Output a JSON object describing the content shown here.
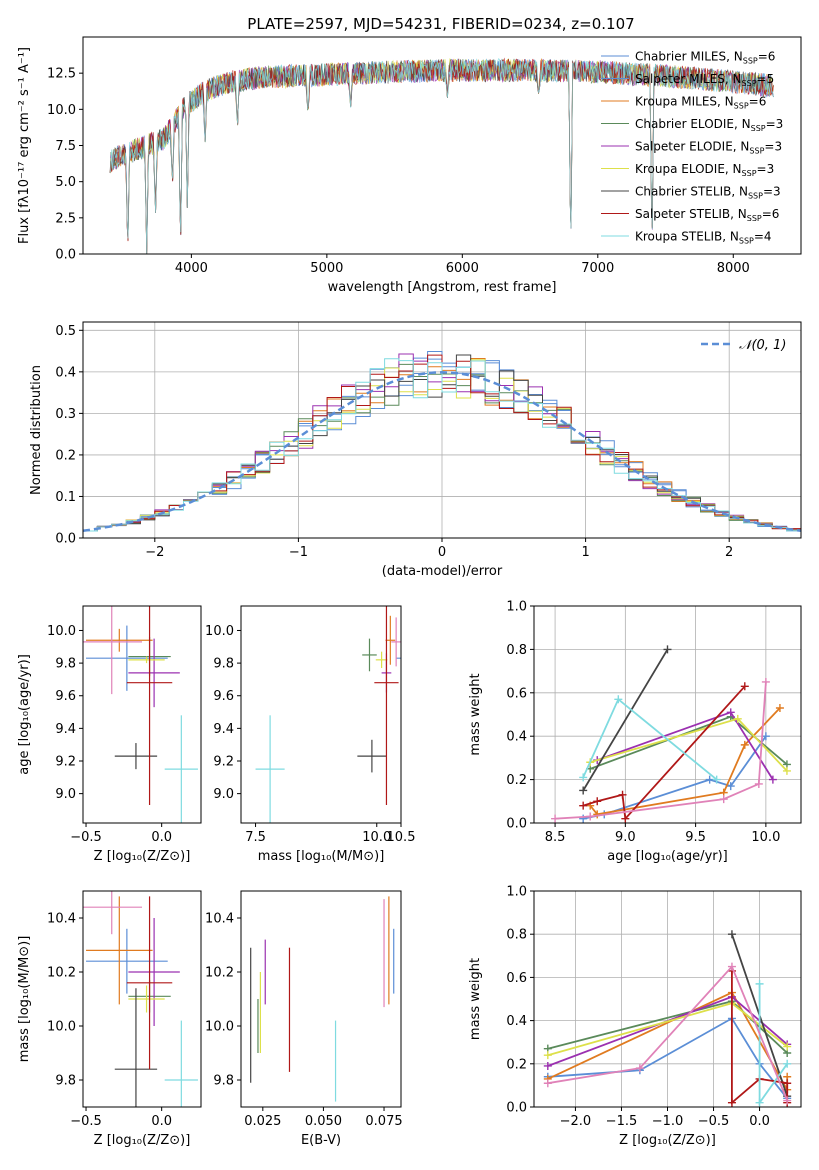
{
  "figure_title": "PLATE=2597, MJD=54231, FIBERID=0234, z=0.107",
  "series_styles": [
    {
      "name": "Chabrier MILES",
      "n": "6",
      "color": "#5b8ed6"
    },
    {
      "name": "Salpeter MILES",
      "n": "5",
      "color": "#5b8ed6"
    },
    {
      "name": "Kroupa MILES",
      "n": "6",
      "color": "#e07b20"
    },
    {
      "name": "Chabrier ELODIE",
      "n": "3",
      "color": "#5a8a5a"
    },
    {
      "name": "Salpeter ELODIE",
      "n": "3",
      "color": "#9b30b0"
    },
    {
      "name": "Kroupa ELODIE",
      "n": "3",
      "color": "#dde04a"
    },
    {
      "name": "Chabrier STELIB",
      "n": "3",
      "color": "#444444"
    },
    {
      "name": "Salpeter STELIB",
      "n": "6",
      "color": "#b01818"
    },
    {
      "name": "Kroupa STELIB",
      "n": "4",
      "color": "#7fdbe0"
    }
  ],
  "chart_data": [
    {
      "id": "spectrum",
      "type": "line",
      "xlabel": "wavelength [Angstrom, rest frame]",
      "ylabel": "Flux [fλ10⁻¹⁷ erg cm⁻² s⁻¹ A⁻¹]",
      "xlim": [
        3200,
        8500
      ],
      "ylim": [
        0,
        15
      ],
      "xticks": [
        4000,
        5000,
        6000,
        7000,
        8000
      ],
      "yticks": [
        0.0,
        2.5,
        5.0,
        7.5,
        10.0,
        12.5
      ],
      "continuum": [
        [
          3400,
          6.4
        ],
        [
          3500,
          6.9
        ],
        [
          3650,
          7.4
        ],
        [
          3800,
          8.0
        ],
        [
          3950,
          10.2
        ],
        [
          4100,
          11.3
        ],
        [
          4300,
          11.9
        ],
        [
          4500,
          12.2
        ],
        [
          5000,
          12.4
        ],
        [
          5500,
          12.6
        ],
        [
          6000,
          12.7
        ],
        [
          6500,
          12.7
        ],
        [
          7000,
          12.6
        ],
        [
          7500,
          12.3
        ],
        [
          8000,
          11.9
        ],
        [
          8300,
          11.6
        ]
      ],
      "absorption_lines": [
        [
          3530,
          0.0
        ],
        [
          3670,
          0.0
        ],
        [
          3735,
          2.5
        ],
        [
          3860,
          4.5
        ],
        [
          3920,
          0.0
        ],
        [
          3970,
          3.2
        ],
        [
          4101,
          7.5
        ],
        [
          4340,
          8.5
        ],
        [
          4861,
          9.5
        ],
        [
          5175,
          10.0
        ],
        [
          5890,
          10.8
        ],
        [
          6563,
          11.0
        ],
        [
          6800,
          0.0
        ],
        [
          7400,
          0.0
        ]
      ],
      "legend": "upper right"
    },
    {
      "id": "residuals",
      "type": "histogram",
      "xlabel": "(data-model)/error",
      "ylabel": "Normed distribution",
      "xlim": [
        -2.5,
        2.5
      ],
      "ylim": [
        0,
        0.52
      ],
      "xticks": [
        -2,
        -1,
        0,
        1,
        2
      ],
      "yticks": [
        0.0,
        0.1,
        0.2,
        0.3,
        0.4,
        0.5
      ],
      "bin_width": 0.1,
      "grid": true,
      "legend_label": "𝒩(0, 1)",
      "legend": "upper right"
    },
    {
      "id": "z-age",
      "type": "errorbar",
      "xlabel": "Z [log₁₀(Z/Z⊙)]",
      "ylabel": "age  [log₁₀(age/yr)]",
      "xlim": [
        -0.52,
        0.26
      ],
      "ylim": [
        8.82,
        10.15
      ],
      "xticks": [
        -0.5,
        0.0
      ],
      "yticks": [
        9.0,
        9.2,
        9.4,
        9.6,
        9.8,
        10.0
      ],
      "points": [
        {
          "x": -0.23,
          "y": 9.83,
          "xerr": 0.27,
          "yerr": 0.2,
          "color": "#5b8ed6"
        },
        {
          "x": -0.28,
          "y": 9.94,
          "xerr": 0.22,
          "yerr": 0.07,
          "color": "#e07b20"
        },
        {
          "x": -0.08,
          "y": 9.84,
          "xerr": 0.14,
          "yerr": 0.12,
          "color": "#5a8a5a"
        },
        {
          "x": -0.05,
          "y": 9.74,
          "xerr": 0.17,
          "yerr": 0.21,
          "color": "#9b30b0"
        },
        {
          "x": -0.1,
          "y": 9.82,
          "xerr": 0.12,
          "yerr": 0.02,
          "color": "#dde04a"
        },
        {
          "x": -0.17,
          "y": 9.23,
          "xerr": 0.14,
          "yerr": 0.08,
          "color": "#444444"
        },
        {
          "x": -0.08,
          "y": 9.68,
          "xerr": 0.15,
          "yerr": 0.75,
          "color": "#b01818"
        },
        {
          "x": 0.13,
          "y": 9.15,
          "xerr": 0.11,
          "yerr": 0.33,
          "color": "#7fdbe0"
        },
        {
          "x": -0.33,
          "y": 9.93,
          "xerr": 0.2,
          "yerr": 0.32,
          "color": "#e082b8"
        }
      ]
    },
    {
      "id": "mass-age",
      "type": "errorbar",
      "xlabel": "mass [log₁₀(M/M⊙)]",
      "ylabel": "",
      "xlim": [
        7.2,
        10.5
      ],
      "ylim": [
        8.82,
        10.15
      ],
      "xticks": [
        7.5,
        10.0,
        10.5
      ],
      "yticks": [
        9.0,
        9.2,
        9.4,
        9.6,
        9.8,
        10.0
      ],
      "points": [
        {
          "x": 10.6,
          "y": 9.83,
          "xerr": 0.2,
          "yerr": 0.1,
          "color": "#5b8ed6"
        },
        {
          "x": 10.28,
          "y": 9.94,
          "xerr": 0.1,
          "yerr": 0.15,
          "color": "#e07b20"
        },
        {
          "x": 9.85,
          "y": 9.85,
          "xerr": 0.15,
          "yerr": 0.1,
          "color": "#5a8a5a"
        },
        {
          "x": 10.2,
          "y": 9.74,
          "xerr": 0.1,
          "yerr": 0.12,
          "color": "#9b30b0"
        },
        {
          "x": 10.1,
          "y": 9.82,
          "xerr": 0.12,
          "yerr": 0.05,
          "color": "#dde04a"
        },
        {
          "x": 9.9,
          "y": 9.23,
          "xerr": 0.3,
          "yerr": 0.1,
          "color": "#444444"
        },
        {
          "x": 10.2,
          "y": 9.68,
          "xerr": 0.25,
          "yerr": 0.75,
          "color": "#b01818"
        },
        {
          "x": 7.8,
          "y": 9.15,
          "xerr": 0.3,
          "yerr": 0.33,
          "color": "#7fdbe0"
        },
        {
          "x": 10.4,
          "y": 9.93,
          "xerr": 0.1,
          "yerr": 0.15,
          "color": "#e082b8"
        }
      ]
    },
    {
      "id": "age-weight",
      "type": "line",
      "xlabel": "age  [log₁₀(age/yr)]",
      "ylabel": "mass weight",
      "xlim": [
        8.35,
        10.25
      ],
      "ylim": [
        0,
        1
      ],
      "xticks": [
        8.5,
        9.0,
        9.5,
        10.0
      ],
      "yticks": [
        0.0,
        0.2,
        0.4,
        0.6,
        0.8,
        1.0
      ],
      "grid": true,
      "series": [
        {
          "color": "#5b8ed6",
          "x": [
            8.7,
            8.85,
            9.6,
            9.75,
            10.0
          ],
          "y": [
            0.02,
            0.04,
            0.2,
            0.17,
            0.4
          ]
        },
        {
          "color": "#e07b20",
          "x": [
            8.75,
            8.8,
            9.7,
            9.85,
            10.1
          ],
          "y": [
            0.08,
            0.04,
            0.14,
            0.36,
            0.53
          ]
        },
        {
          "color": "#5a8a5a",
          "x": [
            8.75,
            9.75,
            10.15
          ],
          "y": [
            0.25,
            0.49,
            0.27
          ]
        },
        {
          "color": "#9b30b0",
          "x": [
            8.8,
            9.75,
            10.05
          ],
          "y": [
            0.29,
            0.51,
            0.2
          ]
        },
        {
          "color": "#dde04a",
          "x": [
            8.75,
            9.8,
            10.15
          ],
          "y": [
            0.28,
            0.48,
            0.24
          ]
        },
        {
          "color": "#444444",
          "x": [
            8.7,
            9.3
          ],
          "y": [
            0.15,
            0.8
          ]
        },
        {
          "color": "#b01818",
          "x": [
            8.7,
            8.8,
            8.98,
            9.0,
            9.85
          ],
          "y": [
            0.08,
            0.1,
            0.13,
            0.02,
            0.63
          ]
        },
        {
          "color": "#7fdbe0",
          "x": [
            8.7,
            8.95,
            9.65
          ],
          "y": [
            0.21,
            0.57,
            0.2
          ]
        },
        {
          "color": "#e082b8",
          "x": [
            8.5,
            8.75,
            9.7,
            9.95,
            10.0
          ],
          "y": [
            0.02,
            0.03,
            0.11,
            0.18,
            0.65
          ]
        }
      ]
    },
    {
      "id": "z-mass",
      "type": "errorbar",
      "xlabel": "Z [log₁₀(Z/Z⊙)]",
      "ylabel": "mass [log₁₀(M/M⊙)]",
      "xlim": [
        -0.52,
        0.26
      ],
      "ylim": [
        9.7,
        10.5
      ],
      "xticks": [
        -0.5,
        0.0
      ],
      "yticks": [
        9.8,
        10.0,
        10.2,
        10.4
      ],
      "points": [
        {
          "x": -0.23,
          "y": 10.24,
          "xerr": 0.27,
          "yerr": 0.12,
          "color": "#5b8ed6"
        },
        {
          "x": -0.28,
          "y": 10.28,
          "xerr": 0.22,
          "yerr": 0.2,
          "color": "#e07b20"
        },
        {
          "x": -0.08,
          "y": 10.11,
          "xerr": 0.14,
          "yerr": 0.06,
          "color": "#5a8a5a"
        },
        {
          "x": -0.05,
          "y": 10.2,
          "xerr": 0.17,
          "yerr": 0.2,
          "color": "#9b30b0"
        },
        {
          "x": -0.1,
          "y": 10.1,
          "xerr": 0.12,
          "yerr": 0.05,
          "color": "#dde04a"
        },
        {
          "x": -0.17,
          "y": 9.84,
          "xerr": 0.14,
          "yerr": 0.3,
          "color": "#444444"
        },
        {
          "x": -0.08,
          "y": 10.16,
          "xerr": 0.15,
          "yerr": 0.32,
          "color": "#b01818"
        },
        {
          "x": 0.13,
          "y": 9.8,
          "xerr": 0.11,
          "yerr": 0.22,
          "color": "#7fdbe0"
        },
        {
          "x": -0.33,
          "y": 10.44,
          "xerr": 0.2,
          "yerr": 0.1,
          "color": "#e082b8"
        }
      ]
    },
    {
      "id": "ebv-mass",
      "type": "errorbar",
      "xlabel": "E(B-V)",
      "ylabel": "",
      "xlim": [
        0.016,
        0.082
      ],
      "ylim": [
        9.7,
        10.5
      ],
      "xticks": [
        0.025,
        0.05,
        0.075
      ],
      "yticks": [
        9.8,
        10.0,
        10.2,
        10.4
      ],
      "points": [
        {
          "x": 0.079,
          "y": 10.24,
          "xerr": 0.0,
          "yerr": 0.12,
          "color": "#5b8ed6"
        },
        {
          "x": 0.077,
          "y": 10.28,
          "xerr": 0.0,
          "yerr": 0.2,
          "color": "#e07b20"
        },
        {
          "x": 0.023,
          "y": 10.0,
          "xerr": 0.0,
          "yerr": 0.1,
          "color": "#5a8a5a"
        },
        {
          "x": 0.026,
          "y": 10.2,
          "xerr": 0.0,
          "yerr": 0.12,
          "color": "#9b30b0"
        },
        {
          "x": 0.024,
          "y": 10.05,
          "xerr": 0.0,
          "yerr": 0.15,
          "color": "#dde04a"
        },
        {
          "x": 0.02,
          "y": 10.04,
          "xerr": 0.0,
          "yerr": 0.25,
          "color": "#444444"
        },
        {
          "x": 0.036,
          "y": 10.06,
          "xerr": 0.0,
          "yerr": 0.23,
          "color": "#b01818"
        },
        {
          "x": 0.055,
          "y": 9.87,
          "xerr": 0.0,
          "yerr": 0.15,
          "color": "#7fdbe0"
        },
        {
          "x": 0.075,
          "y": 10.27,
          "xerr": 0.0,
          "yerr": 0.2,
          "color": "#e082b8"
        }
      ]
    },
    {
      "id": "z-weight",
      "type": "line",
      "xlabel": "Z [log₁₀(Z/Z⊙)]",
      "ylabel": "mass weight",
      "xlim": [
        -2.45,
        0.45
      ],
      "ylim": [
        0,
        1
      ],
      "xticks": [
        -2.0,
        -1.5,
        -1.0,
        -0.5,
        0.0
      ],
      "yticks": [
        0.0,
        0.2,
        0.4,
        0.6,
        0.8,
        1.0
      ],
      "grid": true,
      "series": [
        {
          "color": "#5b8ed6",
          "x": [
            -2.3,
            -1.3,
            -0.3,
            0.0,
            0.3
          ],
          "y": [
            0.14,
            0.17,
            0.41,
            0.2,
            0.04
          ]
        },
        {
          "color": "#e07b20",
          "x": [
            -2.3,
            -0.3,
            0.3,
            0.3
          ],
          "y": [
            0.13,
            0.53,
            0.08,
            0.14
          ]
        },
        {
          "color": "#5a8a5a",
          "x": [
            -2.3,
            -0.3,
            0.3
          ],
          "y": [
            0.27,
            0.49,
            0.25
          ]
        },
        {
          "color": "#9b30b0",
          "x": [
            -2.3,
            -0.3,
            0.3
          ],
          "y": [
            0.19,
            0.51,
            0.29
          ]
        },
        {
          "color": "#dde04a",
          "x": [
            -2.3,
            -0.3,
            0.3
          ],
          "y": [
            0.24,
            0.48,
            0.28
          ]
        },
        {
          "color": "#444444",
          "x": [
            -0.3,
            0.3
          ],
          "y": [
            0.8,
            0.05
          ]
        },
        {
          "color": "#b01818",
          "x": [
            -0.3,
            -0.3,
            0.0,
            0.3,
            0.3
          ],
          "y": [
            0.63,
            0.02,
            0.13,
            0.11,
            0.02
          ]
        },
        {
          "color": "#7fdbe0",
          "x": [
            0.0,
            0.0,
            0.3
          ],
          "y": [
            0.57,
            0.02,
            0.2
          ]
        },
        {
          "color": "#e082b8",
          "x": [
            -2.3,
            -1.3,
            -0.3,
            0.3
          ],
          "y": [
            0.11,
            0.18,
            0.65,
            0.03
          ]
        }
      ]
    }
  ]
}
